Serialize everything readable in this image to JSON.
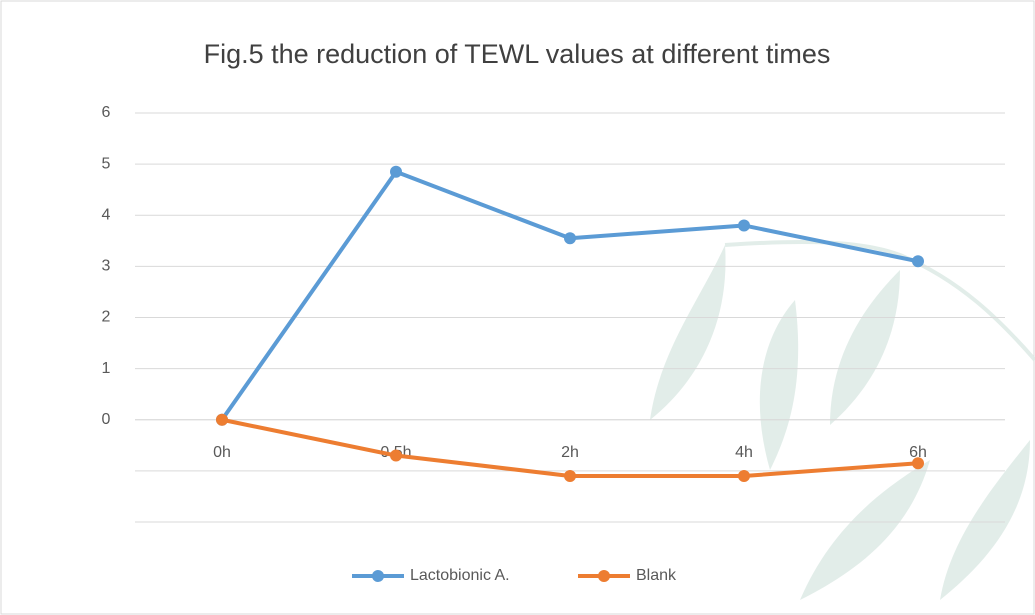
{
  "chart_data": {
    "type": "line",
    "title": "Fig.5 the reduction of TEWL values at different times",
    "categories": [
      "0h",
      "0.5h",
      "2h",
      "4h",
      "6h"
    ],
    "series": [
      {
        "name": "Lactobionic A.",
        "color": "#5b9bd5",
        "values": [
          0,
          4.85,
          3.55,
          3.8,
          3.1
        ]
      },
      {
        "name": "Blank",
        "color": "#ed7d31",
        "values": [
          0,
          -0.7,
          -1.1,
          -1.1,
          -0.85
        ]
      }
    ],
    "ylim": [
      -2,
      6
    ],
    "yticks": [
      {
        "value": -2,
        "label": null
      },
      {
        "value": -1,
        "label": null
      },
      0,
      1,
      2,
      3,
      4,
      5,
      6
    ],
    "grid": true,
    "legend": "bottom"
  }
}
